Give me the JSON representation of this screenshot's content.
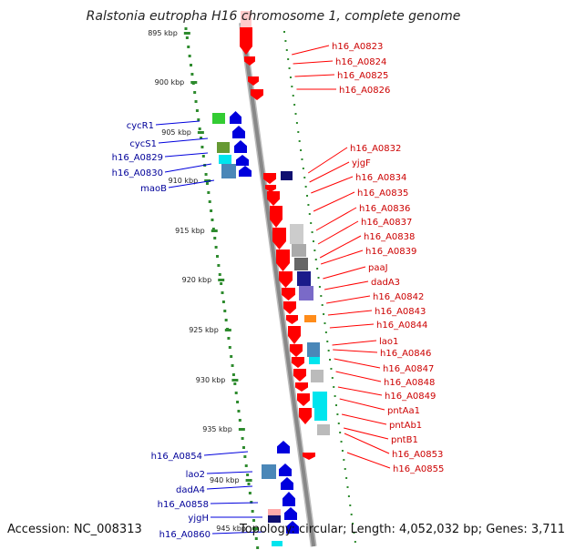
{
  "title": "Ralstonia eutropha H16 chromosome 1, complete genome",
  "footer": {
    "accession": "Accession: NC_008313",
    "stats": "Topology: circular; Length: 4,052,032 bp; Genes: 3,711"
  },
  "colors": {
    "forward_gene": "#ff0000",
    "reverse_gene": "#0000dd",
    "forward_label": "#cc0000",
    "reverse_label": "#000099",
    "backbone": "#888888",
    "tick_dots": "#2e8b2e"
  },
  "scale": {
    "kbp_per_tick_label": 5,
    "tick_labels": [
      {
        "text": "895 kbp",
        "kbp": 895
      },
      {
        "text": "900 kbp",
        "kbp": 900
      },
      {
        "text": "905 kbp",
        "kbp": 905
      },
      {
        "text": "910 kbp",
        "kbp": 910
      },
      {
        "text": "915 kbp",
        "kbp": 915
      },
      {
        "text": "920 kbp",
        "kbp": 920
      },
      {
        "text": "925 kbp",
        "kbp": 925
      },
      {
        "text": "930 kbp",
        "kbp": 930
      },
      {
        "text": "935 kbp",
        "kbp": 935
      },
      {
        "text": "940 kbp",
        "kbp": 940
      },
      {
        "text": "945 kbp",
        "kbp": 945
      }
    ]
  },
  "forward_labels": [
    "h16_A0823",
    "h16_A0824",
    "h16_A0825",
    "h16_A0826",
    "h16_A0832",
    "yjgF",
    "h16_A0834",
    "h16_A0835",
    "h16_A0836",
    "h16_A0837",
    "h16_A0838",
    "h16_A0839",
    "paaJ",
    "dadA3",
    "h16_A0842",
    "h16_A0843",
    "h16_A0844",
    "lao1",
    "h16_A0846",
    "h16_A0847",
    "h16_A0848",
    "h16_A0849",
    "pntAa1",
    "pntAb1",
    "pntB1",
    "h16_A0853",
    "h16_A0855"
  ],
  "reverse_labels": [
    "cycR1",
    "cycS1",
    "h16_A0829",
    "h16_A0830",
    "maoB",
    "h16_A0854",
    "lao2",
    "dadA4",
    "h16_A0858",
    "yjgH",
    "h16_A0860"
  ]
}
